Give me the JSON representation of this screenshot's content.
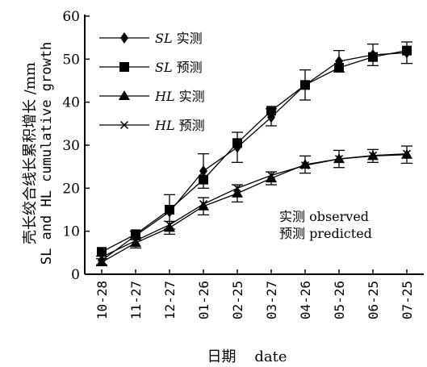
{
  "chart_data": {
    "type": "line",
    "xlabel": "日期    date",
    "ylabel_line1": "壳长绞合线长累积增长 /mm",
    "ylabel_line2": "SL and HL cumulative growth",
    "ylim": [
      0,
      60
    ],
    "yticks": [
      0,
      10,
      20,
      30,
      40,
      50,
      60
    ],
    "categories": [
      "10-28",
      "11-27",
      "12-27",
      "01-26",
      "02-25",
      "03-27",
      "04-26",
      "05-26",
      "06-25",
      "07-25"
    ],
    "series": [
      {
        "name_prefix": "SL",
        "name_suffix": "实测",
        "marker": "diamond",
        "values": [
          3.2,
          9.0,
          14.5,
          24.0,
          29.5,
          36.5,
          44.0,
          49.5,
          51.0,
          51.5
        ],
        "errors": [
          1.0,
          1.0,
          4.0,
          4.0,
          3.5,
          2.0,
          3.5,
          2.5,
          2.5,
          2.5
        ]
      },
      {
        "name_prefix": "SL",
        "name_suffix": "预测",
        "marker": "square",
        "values": [
          5.2,
          9.3,
          15.0,
          22.0,
          30.5,
          38.0,
          44.0,
          48.0,
          50.5,
          52.0
        ],
        "errors": [
          0,
          0,
          0,
          0,
          0,
          0,
          0,
          0,
          0,
          0
        ]
      },
      {
        "name_prefix": "HL",
        "name_suffix": "实测",
        "marker": "triangle",
        "values": [
          2.8,
          7.3,
          10.8,
          15.8,
          18.8,
          22.3,
          25.5,
          26.8,
          27.5,
          27.8
        ],
        "errors": [
          0.8,
          1.2,
          1.5,
          2.0,
          2.0,
          1.5,
          2.0,
          2.0,
          1.5,
          2.0
        ]
      },
      {
        "name_prefix": "HL",
        "name_suffix": "预测",
        "marker": "star",
        "values": [
          4.0,
          7.8,
          11.5,
          16.3,
          20.0,
          23.0,
          25.3,
          26.8,
          27.6,
          28.0
        ],
        "errors": [
          0,
          0,
          0,
          0,
          0,
          0,
          0,
          0,
          0,
          0
        ]
      }
    ],
    "annotation": [
      "实测 observed",
      "预测 predicted"
    ],
    "legend_position": "top-left",
    "grid": false
  }
}
